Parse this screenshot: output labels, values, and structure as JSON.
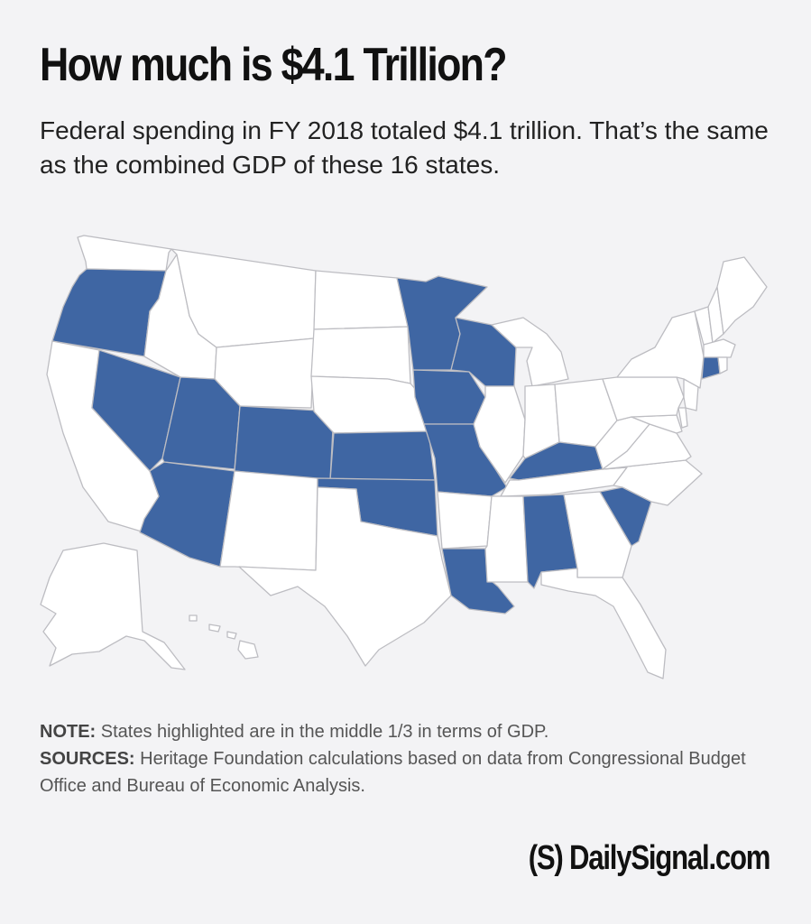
{
  "title": "How much is $4.1 Trillion?",
  "subtitle": "Federal spending in FY 2018 totaled $4.1 trillion. That’s the same as the combined GDP of these 16 states.",
  "colors": {
    "highlight": "#3f66a3",
    "base": "#ffffff",
    "border": "#bdbdc2",
    "background": "#f3f3f5"
  },
  "highlighted_states": [
    "Oregon",
    "Nevada",
    "Utah",
    "Arizona",
    "Colorado",
    "Kansas",
    "Oklahoma",
    "Minnesota",
    "Iowa",
    "Missouri",
    "Wisconsin",
    "Kentucky",
    "Louisiana",
    "Alabama",
    "South Carolina",
    "Connecticut"
  ],
  "note": {
    "label": "NOTE:",
    "text": " States highlighted are in the middle 1/3 in terms of GDP."
  },
  "sources": {
    "label": "SOURCES:",
    "text": " Heritage Foundation calculations based on data from Congressional Budget Office and Bureau of Economic Analysis."
  },
  "logo": "(S) DailySignal.com"
}
